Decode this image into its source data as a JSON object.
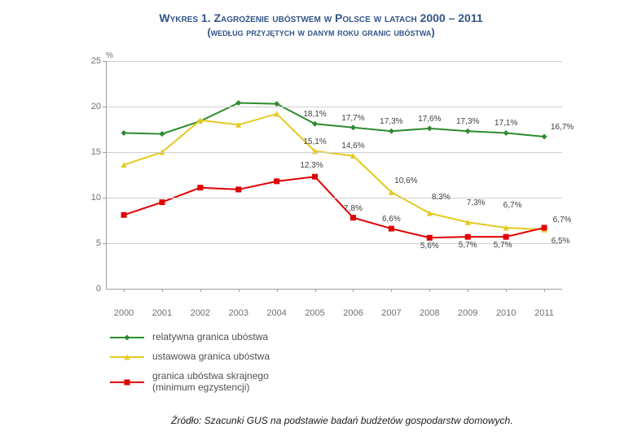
{
  "title_line1": "Wykres 1. Zagrożenie ubóstwem w Polsce w latach 2000 – 2011",
  "title_line2": "(według przyjętych w danym roku granic ubóstwa)",
  "y_unit": "%",
  "source": "Źródło: Szacunki GUS na podstawie badań budżetów gospodarstw domowych.",
  "chart": {
    "type": "line",
    "background_color": "#ffffff",
    "grid_color": "#cfcfcf",
    "axis_color": "#a0a0a0",
    "text_color": "#707070",
    "label_fontsize": 10,
    "tick_fontsize": 11,
    "title_fontsize": 14,
    "categories": [
      "2000",
      "2001",
      "2002",
      "2003",
      "2004",
      "2005",
      "2006",
      "2007",
      "2008",
      "2009",
      "2010",
      "2011"
    ],
    "ylim": [
      0,
      25
    ],
    "ytick_step": 5,
    "line_width": 2,
    "marker_size": 7,
    "series": [
      {
        "id": "relatywna",
        "label": "relatywna granica ubóstwa",
        "color": "#2e8b2e",
        "marker": "diamond",
        "values": [
          17.1,
          17.0,
          18.4,
          20.4,
          20.3,
          18.1,
          17.7,
          17.3,
          17.6,
          17.3,
          17.1,
          16.7
        ],
        "annotate_from": 5,
        "label_offset_y": -6
      },
      {
        "id": "ustawowa",
        "label": "ustawowa granica ubóstwa",
        "color": "#e6c91f",
        "marker": "triangle",
        "values": [
          13.6,
          15.0,
          18.5,
          18.0,
          19.2,
          15.1,
          14.6,
          10.6,
          8.3,
          7.3,
          6.7,
          6.5
        ],
        "annotate_from": 5,
        "label_offset_y": -6
      },
      {
        "id": "skrajne",
        "label": "granica ubóstwa skrajnego\n(minimum egzystencji)",
        "color": "#e00000",
        "marker": "square",
        "values": [
          8.1,
          9.5,
          11.1,
          10.9,
          11.8,
          12.3,
          7.8,
          6.6,
          5.6,
          5.7,
          5.7,
          6.7
        ],
        "annotate_from": 5,
        "label_offset_y": -6
      }
    ]
  }
}
